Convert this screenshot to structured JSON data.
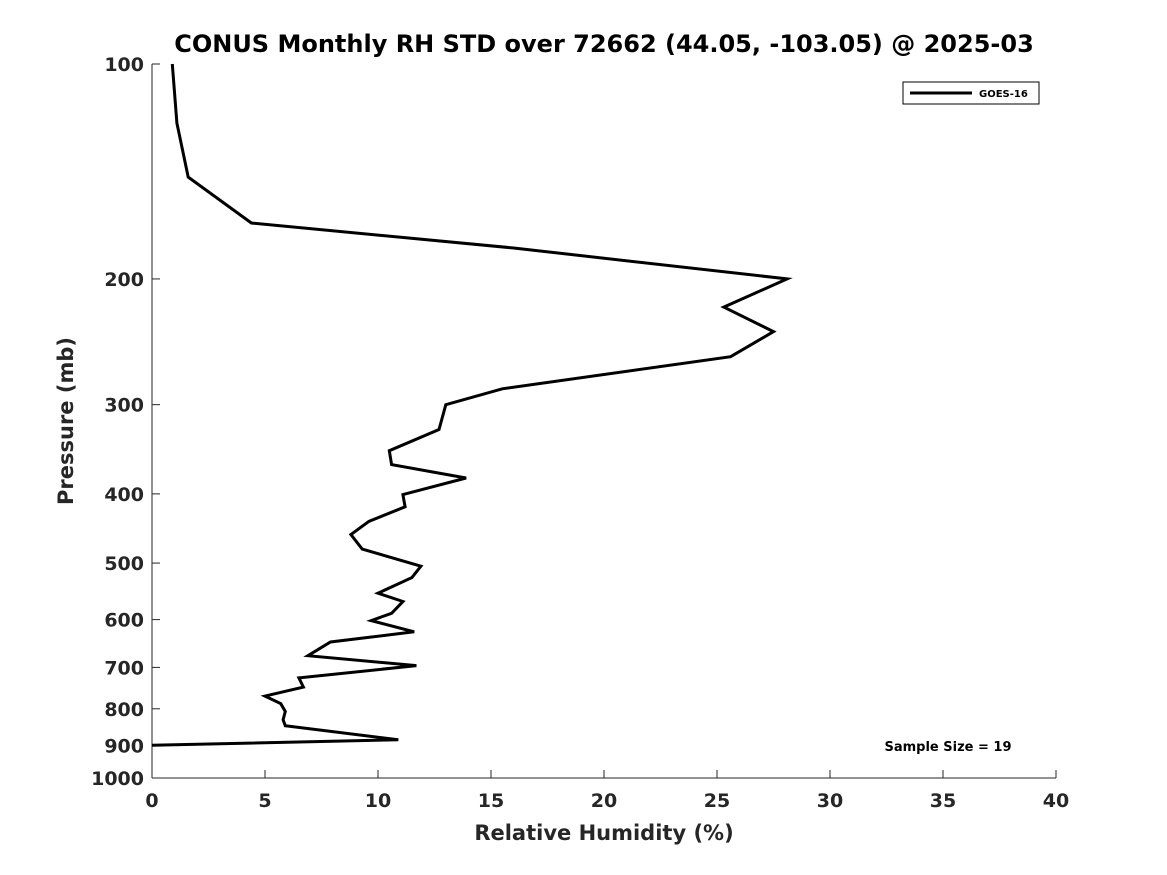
{
  "chart_data": {
    "type": "line",
    "title": "CONUS Monthly RH STD over 72662 (44.05, -103.05) @ 2025-03",
    "xlabel": "Relative Humidity (%)",
    "ylabel": "Pressure (mb)",
    "xlim": [
      0,
      40
    ],
    "ylim": [
      100,
      1000
    ],
    "y_scale": "log",
    "y_reversed": true,
    "x_ticks": [
      0,
      5,
      10,
      15,
      20,
      25,
      30,
      35,
      40
    ],
    "y_ticks": [
      100,
      200,
      300,
      400,
      500,
      600,
      700,
      800,
      900,
      1000
    ],
    "grid": false,
    "legend_position": "top-right",
    "series": [
      {
        "name": "GOES-16",
        "color": "#000000",
        "points": [
          {
            "x": 0.9,
            "y": 100
          },
          {
            "x": 1.1,
            "y": 121
          },
          {
            "x": 1.6,
            "y": 144
          },
          {
            "x": 4.4,
            "y": 167
          },
          {
            "x": 16.0,
            "y": 181
          },
          {
            "x": 28.1,
            "y": 200
          },
          {
            "x": 25.3,
            "y": 219
          },
          {
            "x": 27.5,
            "y": 237
          },
          {
            "x": 25.6,
            "y": 257
          },
          {
            "x": 15.5,
            "y": 285
          },
          {
            "x": 13.0,
            "y": 300
          },
          {
            "x": 12.7,
            "y": 325
          },
          {
            "x": 10.5,
            "y": 348
          },
          {
            "x": 10.6,
            "y": 364
          },
          {
            "x": 13.9,
            "y": 380
          },
          {
            "x": 11.1,
            "y": 401
          },
          {
            "x": 11.2,
            "y": 417
          },
          {
            "x": 9.6,
            "y": 437
          },
          {
            "x": 8.8,
            "y": 456
          },
          {
            "x": 9.3,
            "y": 478
          },
          {
            "x": 11.9,
            "y": 505
          },
          {
            "x": 11.5,
            "y": 524
          },
          {
            "x": 10.0,
            "y": 551
          },
          {
            "x": 11.1,
            "y": 566
          },
          {
            "x": 10.6,
            "y": 588
          },
          {
            "x": 9.7,
            "y": 602
          },
          {
            "x": 11.6,
            "y": 624
          },
          {
            "x": 7.9,
            "y": 645
          },
          {
            "x": 6.9,
            "y": 674
          },
          {
            "x": 11.7,
            "y": 696
          },
          {
            "x": 6.5,
            "y": 724
          },
          {
            "x": 6.7,
            "y": 746
          },
          {
            "x": 5.0,
            "y": 768
          },
          {
            "x": 5.7,
            "y": 787
          },
          {
            "x": 5.9,
            "y": 807
          },
          {
            "x": 5.8,
            "y": 829
          },
          {
            "x": 5.9,
            "y": 845
          },
          {
            "x": 10.9,
            "y": 884
          },
          {
            "x": 0.0,
            "y": 900
          }
        ]
      }
    ],
    "annotations": [
      "Sample Size = 19"
    ]
  }
}
